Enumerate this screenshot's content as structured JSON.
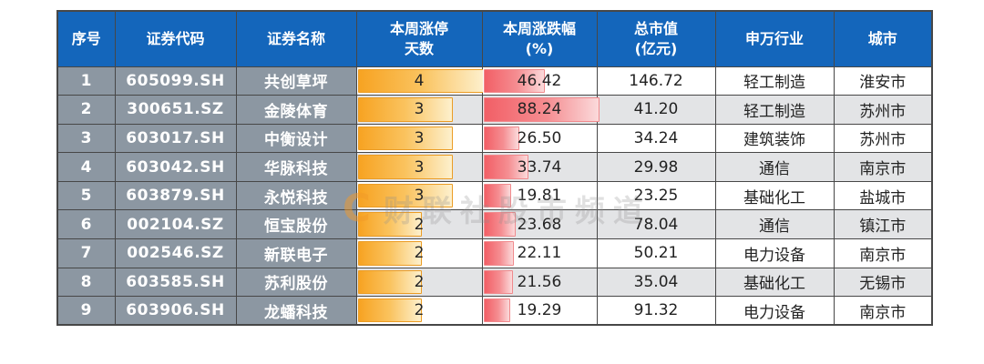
{
  "watermark": {
    "logo": "C",
    "text": "财联社股市频道"
  },
  "chart_data": {
    "type": "table",
    "headers": [
      "序号",
      "证券代码",
      "证券名称",
      "本周涨停\n天数",
      "本周涨跌幅\n(%)",
      "总市值\n(亿元)",
      "申万行业",
      "城市"
    ],
    "rows": [
      {
        "seq": "1",
        "code": "605099.SH",
        "name": "共创草坪",
        "limit_up_days": 4,
        "week_change_pct": 46.42,
        "market_cap_100m": 146.72,
        "industry": "轻工制造",
        "city": "淮安市"
      },
      {
        "seq": "2",
        "code": "300651.SZ",
        "name": "金陵体育",
        "limit_up_days": 3,
        "week_change_pct": 88.24,
        "market_cap_100m": 41.2,
        "industry": "轻工制造",
        "city": "苏州市"
      },
      {
        "seq": "3",
        "code": "603017.SH",
        "name": "中衡设计",
        "limit_up_days": 3,
        "week_change_pct": 26.5,
        "market_cap_100m": 34.24,
        "industry": "建筑装饰",
        "city": "苏州市"
      },
      {
        "seq": "4",
        "code": "603042.SH",
        "name": "华脉科技",
        "limit_up_days": 3,
        "week_change_pct": 33.74,
        "market_cap_100m": 29.98,
        "industry": "通信",
        "city": "南京市"
      },
      {
        "seq": "5",
        "code": "603879.SH",
        "name": "永悦科技",
        "limit_up_days": 3,
        "week_change_pct": 19.81,
        "market_cap_100m": 23.25,
        "industry": "基础化工",
        "city": "盐城市"
      },
      {
        "seq": "6",
        "code": "002104.SZ",
        "name": "恒宝股份",
        "limit_up_days": 2,
        "week_change_pct": 23.68,
        "market_cap_100m": 78.04,
        "industry": "通信",
        "city": "镇江市"
      },
      {
        "seq": "7",
        "code": "002546.SZ",
        "name": "新联电子",
        "limit_up_days": 2,
        "week_change_pct": 22.11,
        "market_cap_100m": 50.21,
        "industry": "电力设备",
        "city": "南京市"
      },
      {
        "seq": "8",
        "code": "603585.SH",
        "name": "苏利股份",
        "limit_up_days": 2,
        "week_change_pct": 21.56,
        "market_cap_100m": 35.04,
        "industry": "基础化工",
        "city": "无锡市"
      },
      {
        "seq": "9",
        "code": "603906.SH",
        "name": "龙蟠科技",
        "limit_up_days": 2,
        "week_change_pct": 19.29,
        "market_cap_100m": 91.32,
        "industry": "电力设备",
        "city": "南京市"
      }
    ],
    "bar_scales": {
      "limit_up_days_max": 4,
      "week_change_pct_max": 88.24
    },
    "layout": {
      "grid": "on",
      "data_bars": [
        "limit_up_days",
        "week_change_pct"
      ],
      "alt_row_shading": true
    },
    "colors": {
      "header_bg": "#1466bb",
      "header_text": "#ffffff",
      "label_bg": "#8c97a2",
      "label_text": "#ffffff",
      "row_bg": "#ffffff",
      "row_alt_bg": "#e3e4e6",
      "grid": "#474747",
      "days_start": "#f7a322",
      "days_end": "#fdf0cd",
      "days_border": "#eb9c24",
      "pct_start": "#f25f66",
      "pct_end": "#fbdadb",
      "pct_border": "#f08a8d"
    }
  }
}
